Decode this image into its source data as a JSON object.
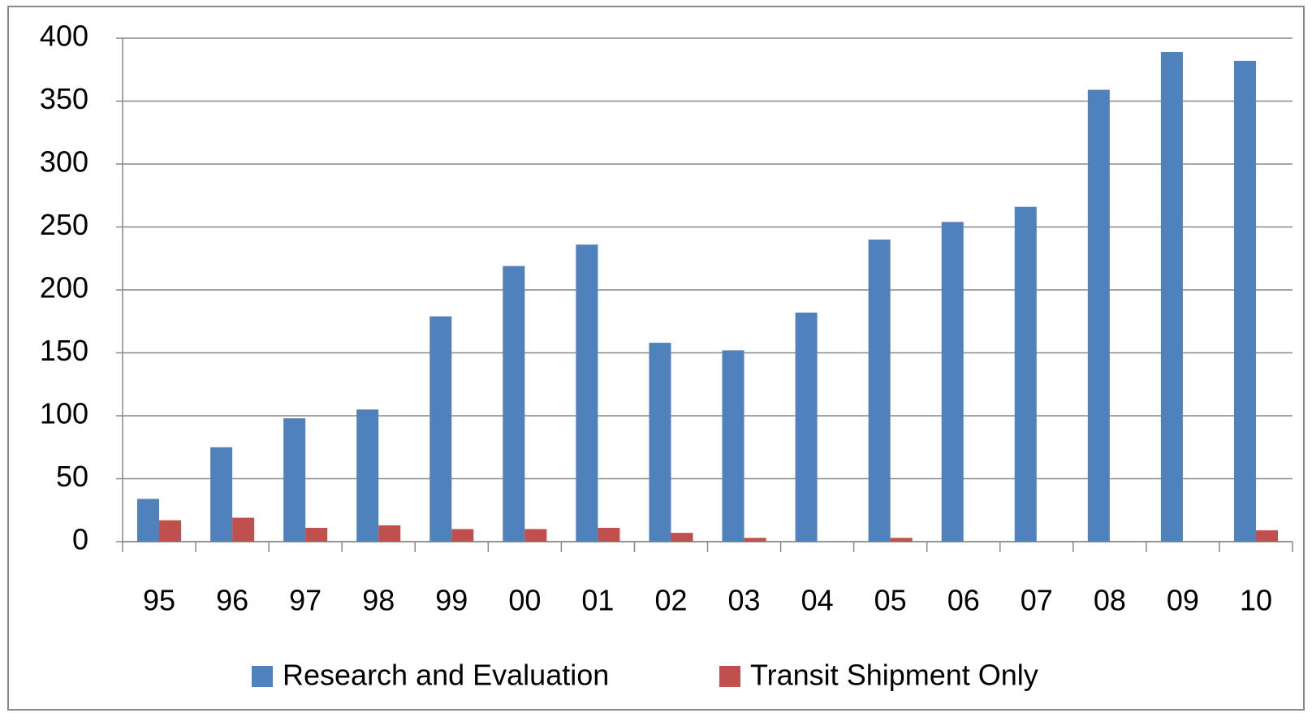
{
  "chart_data": {
    "type": "bar",
    "categories": [
      "95",
      "96",
      "97",
      "98",
      "99",
      "00",
      "01",
      "02",
      "03",
      "04",
      "05",
      "06",
      "07",
      "08",
      "09",
      "10"
    ],
    "series": [
      {
        "name": "Research and Evaluation",
        "color": "#4f81bd",
        "values": [
          34,
          75,
          98,
          105,
          179,
          219,
          236,
          158,
          152,
          182,
          240,
          254,
          266,
          359,
          389,
          382
        ]
      },
      {
        "name": "Transit Shipment Only",
        "color": "#c0504d",
        "values": [
          17,
          19,
          11,
          13,
          10,
          10,
          11,
          7,
          3,
          0,
          3,
          0,
          0,
          0,
          0,
          9
        ]
      }
    ],
    "ylim": [
      0,
      400
    ],
    "yticks": [
      0,
      50,
      100,
      150,
      200,
      250,
      300,
      350,
      400
    ],
    "grid": true,
    "legend": "bottom"
  }
}
